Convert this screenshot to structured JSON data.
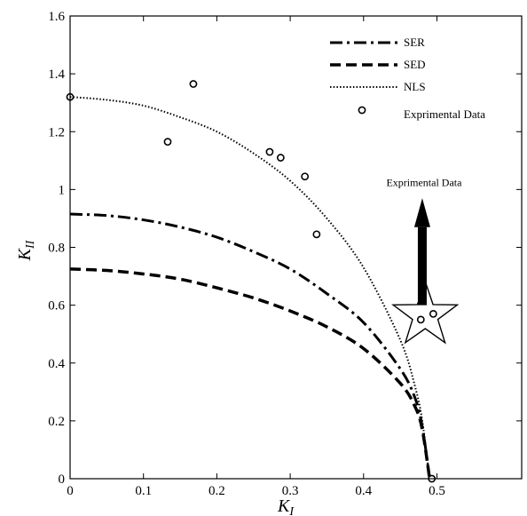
{
  "chart_data": {
    "type": "line",
    "title": "",
    "xlabel": "K",
    "xlabel_sub": "I",
    "ylabel": "K",
    "ylabel_sub": "II",
    "xlim": [
      0,
      0.55
    ],
    "ylim": [
      0,
      1.6
    ],
    "x_ticks": [
      "0",
      "0.1",
      "0.2",
      "0.3",
      "0.4",
      "0.5"
    ],
    "y_ticks": [
      "0",
      "0.2",
      "0.4",
      "0.6",
      "0.8",
      "1",
      "1.2",
      "1.4",
      "1.6"
    ],
    "grid": false,
    "legend_placement": "top-right",
    "series": [
      {
        "name": "SER",
        "style": "dash-dot",
        "x": [
          0,
          0.05,
          0.1,
          0.15,
          0.2,
          0.25,
          0.3,
          0.35,
          0.4,
          0.45,
          0.47,
          0.48,
          0.49
        ],
        "y": [
          0.915,
          0.91,
          0.895,
          0.87,
          0.835,
          0.785,
          0.725,
          0.64,
          0.54,
          0.38,
          0.28,
          0.18,
          0.0
        ]
      },
      {
        "name": "SED",
        "style": "dashed",
        "x": [
          0,
          0.05,
          0.1,
          0.15,
          0.2,
          0.25,
          0.3,
          0.35,
          0.4,
          0.45,
          0.47,
          0.48,
          0.49
        ],
        "y": [
          0.725,
          0.72,
          0.708,
          0.69,
          0.66,
          0.625,
          0.58,
          0.525,
          0.45,
          0.33,
          0.25,
          0.17,
          0.0
        ]
      },
      {
        "name": "NLS",
        "style": "dotted",
        "x": [
          0,
          0.05,
          0.1,
          0.15,
          0.2,
          0.25,
          0.3,
          0.35,
          0.4,
          0.45,
          0.47,
          0.48,
          0.49
        ],
        "y": [
          1.32,
          1.31,
          1.29,
          1.25,
          1.2,
          1.125,
          1.03,
          0.9,
          0.73,
          0.48,
          0.32,
          0.2,
          0.0
        ]
      },
      {
        "name": "Exprimental Data",
        "style": "markers",
        "x": [
          0.0,
          0.133,
          0.168,
          0.272,
          0.287,
          0.32,
          0.336,
          0.478,
          0.495,
          0.493
        ],
        "y": [
          1.32,
          1.165,
          1.365,
          1.13,
          1.11,
          1.045,
          0.845,
          0.55,
          0.57,
          0.0
        ]
      }
    ],
    "annotations": [
      {
        "text": "Exprimental Data",
        "x": 0.48,
        "y": 1.02,
        "arrow_to": [
          0.48,
          0.6
        ],
        "star_at": [
          0.484,
          0.565
        ]
      }
    ]
  }
}
